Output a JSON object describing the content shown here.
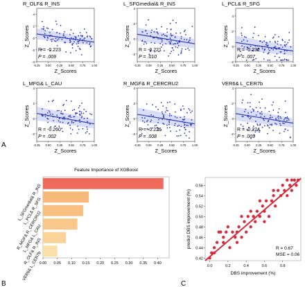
{
  "panel_labels": {
    "a": "A",
    "b": "B",
    "c": "C"
  },
  "chart_data": [
    {
      "type": "scatter",
      "title": "R_OLF& R_INS",
      "xlabel": "Z_Scores",
      "ylabel": "Z_Scores",
      "xlim": [
        -0.25,
        1.0
      ],
      "ylim": [
        -4,
        5
      ],
      "xticks": [
        "-0.25",
        "0.00",
        "0.25",
        "0.50",
        "0.75",
        "1.00"
      ],
      "yticks": [
        "-4",
        "-2",
        "0",
        "2",
        "4"
      ],
      "stats": {
        "r": "R = -0.223",
        "p": "P = .009"
      },
      "fit": {
        "intercept": 0.4,
        "slope": -1.1
      },
      "seed": 11
    },
    {
      "type": "scatter",
      "title": "L_SFGmedial& R_INS",
      "xlabel": "Z_Scores",
      "ylabel": "Z_Scores",
      "xlim": [
        -0.25,
        1.0
      ],
      "ylim": [
        -3,
        4
      ],
      "xticks": [
        "-0.25",
        "0.00",
        "0.25",
        "0.50",
        "0.75",
        "1.00"
      ],
      "yticks": [
        "-2",
        "0",
        "2",
        "4"
      ],
      "stats": {
        "r": "R = -0.221",
        "p": "P = .010"
      },
      "fit": {
        "intercept": 0.35,
        "slope": -1.0
      },
      "seed": 23
    },
    {
      "type": "scatter",
      "title": "L_PCL& R_SFG",
      "xlabel": "Z_Scores",
      "ylabel": "Z_Scores",
      "xlim": [
        -0.25,
        1.0
      ],
      "ylim": [
        -2,
        5
      ],
      "xticks": [
        "-0.25",
        "0.00",
        "0.25",
        "0.50",
        "0.75",
        "1.00"
      ],
      "yticks": [
        "-2",
        "0",
        "2",
        "4"
      ],
      "stats": {
        "r": "R = -0.232",
        "p": "P = .007"
      },
      "fit": {
        "intercept": 0.3,
        "slope": -0.9
      },
      "seed": 37
    },
    {
      "type": "scatter",
      "title": "L_MFG& L_CAU",
      "xlabel": "Z_Scores",
      "ylabel": "Z_Scores",
      "xlim": [
        -0.25,
        1.0
      ],
      "ylim": [
        -3,
        4
      ],
      "xticks": [
        "-0.25",
        "0.00",
        "0.25",
        "0.50",
        "0.75",
        "1.00"
      ],
      "yticks": [
        "-2",
        "0",
        "2",
        "4"
      ],
      "stats": {
        "r": "R = -0.260",
        "p": "P = .002"
      },
      "fit": {
        "intercept": 0.4,
        "slope": -1.1
      },
      "seed": 41
    },
    {
      "type": "scatter",
      "title": "R_MGF& R_CERCRU2",
      "xlabel": "Z_Scores",
      "ylabel": "Z_Scores",
      "xlim": [
        -0.25,
        1.0
      ],
      "ylim": [
        -3,
        4
      ],
      "xticks": [
        "-0.25",
        "0.00",
        "0.25",
        "0.50",
        "0.75",
        "1.00"
      ],
      "yticks": [
        "-2",
        "0",
        "2",
        "4"
      ],
      "stats": {
        "r": "R = -0.226",
        "p": "P = .008"
      },
      "fit": {
        "intercept": 0.3,
        "slope": -1.0
      },
      "seed": 53
    },
    {
      "type": "scatter",
      "title": "VER6& L_CER7b",
      "xlabel": "Z_Scores",
      "ylabel": "Z_Scores",
      "xlim": [
        -0.25,
        1.0
      ],
      "ylim": [
        -3,
        4
      ],
      "xticks": [
        "-0.25",
        "0.00",
        "0.25",
        "0.50",
        "0.75",
        "1.00"
      ],
      "yticks": [
        "-2",
        "0",
        "2",
        "4"
      ],
      "stats": {
        "r": "R = -0.224",
        "p": "P = .009"
      },
      "fit": {
        "intercept": 0.4,
        "slope": -1.0
      },
      "seed": 67
    },
    {
      "type": "bar",
      "orientation": "horizontal",
      "title": "Feature Importance of XGBoost",
      "categories": [
        "L_SFGmedial& R_INS",
        "L_PCL& R_SFG",
        "R_MGF& R_CERCRU2",
        "L_MFG& L_CAU",
        "R_OLF& R_INS",
        "VER6& L_CER7b"
      ],
      "values": [
        0.42,
        0.16,
        0.14,
        0.12,
        0.08,
        0.05
      ],
      "xlim": [
        0,
        0.44
      ],
      "xticks": [
        "0.00",
        "0.05",
        "0.10",
        "0.15",
        "0.20",
        "0.25",
        "0.30",
        "0.35",
        "0.40"
      ],
      "colors": [
        "#ef6a5a",
        "#f6b979",
        "#f7bf80",
        "#f8c78a",
        "#f9d397",
        "#fae0a8"
      ]
    },
    {
      "type": "scatter",
      "xlabel": "DBS improvement (%)",
      "ylabel": "predict DBS improvement (%)",
      "xlim": [
        -0.05,
        1.0
      ],
      "ylim": [
        0.415,
        0.575
      ],
      "xticks": [
        "0.0",
        "0.2",
        "0.4",
        "0.6",
        "0.8"
      ],
      "yticks": [
        "0.42",
        "0.44",
        "0.46",
        "0.48",
        "0.50",
        "0.52",
        "0.54",
        "0.56"
      ],
      "stats": {
        "r": "R = 0.67",
        "mse": "MSE = 0.06"
      },
      "color": "#d62b3a",
      "points": [
        [
          0.0,
          0.42
        ],
        [
          0.02,
          0.43
        ],
        [
          0.05,
          0.44
        ],
        [
          0.08,
          0.45
        ],
        [
          0.1,
          0.47
        ],
        [
          0.12,
          0.47
        ],
        [
          0.15,
          0.45
        ],
        [
          0.18,
          0.47
        ],
        [
          0.2,
          0.48
        ],
        [
          0.22,
          0.44
        ],
        [
          0.25,
          0.47
        ],
        [
          0.28,
          0.46
        ],
        [
          0.3,
          0.47
        ],
        [
          0.32,
          0.48
        ],
        [
          0.35,
          0.46
        ],
        [
          0.38,
          0.49
        ],
        [
          0.4,
          0.47
        ],
        [
          0.42,
          0.5
        ],
        [
          0.45,
          0.48
        ],
        [
          0.48,
          0.5
        ],
        [
          0.5,
          0.49
        ],
        [
          0.52,
          0.51
        ],
        [
          0.55,
          0.5
        ],
        [
          0.58,
          0.52
        ],
        [
          0.6,
          0.51
        ],
        [
          0.62,
          0.53
        ],
        [
          0.65,
          0.5
        ],
        [
          0.68,
          0.53
        ],
        [
          0.7,
          0.54
        ],
        [
          0.72,
          0.52
        ],
        [
          0.75,
          0.55
        ],
        [
          0.78,
          0.54
        ],
        [
          0.8,
          0.56
        ],
        [
          0.82,
          0.55
        ],
        [
          0.85,
          0.57
        ],
        [
          0.88,
          0.56
        ],
        [
          0.9,
          0.57
        ],
        [
          0.93,
          0.57
        ],
        [
          0.95,
          0.56
        ],
        [
          0.97,
          0.57
        ],
        [
          0.05,
          0.43
        ],
        [
          0.15,
          0.46
        ],
        [
          0.3,
          0.45
        ],
        [
          0.45,
          0.51
        ],
        [
          0.6,
          0.49
        ],
        [
          0.7,
          0.55
        ],
        [
          0.85,
          0.54
        ],
        [
          0.9,
          0.55
        ],
        [
          0.35,
          0.5
        ],
        [
          0.55,
          0.53
        ]
      ],
      "fit": [
        [
          -0.05,
          0.415
        ],
        [
          1.0,
          0.573
        ]
      ]
    }
  ]
}
